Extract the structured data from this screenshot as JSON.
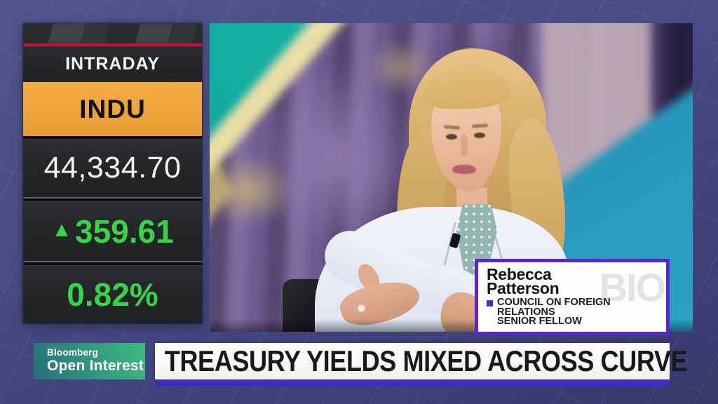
{
  "colors": {
    "accent_green": "#38d348",
    "ticker_orange": "#efa33c",
    "accent_red": "#c11226",
    "stripe_indigo": "#3e2cc2",
    "bio_purple": "#5a28c9",
    "brand_green_end": "#3fba80"
  },
  "market_panel": {
    "label": "INTRADAY",
    "ticker": "INDU",
    "price": "44,334.70",
    "change_arrow": "▲",
    "change": "359.61",
    "percent_change": "0.82%",
    "direction": "up"
  },
  "bio_card": {
    "watermark": "BIO",
    "name_line1": "Rebecca",
    "name_line2": "Patterson",
    "affiliation_lines": [
      "COUNCIL ON FOREIGN",
      "RELATIONS",
      "SENIOR FELLOW"
    ]
  },
  "lower_third": {
    "network": "Bloomberg",
    "show": "Open Interest",
    "headline": "TREASURY YIELDS MIXED ACROSS CURVE"
  }
}
